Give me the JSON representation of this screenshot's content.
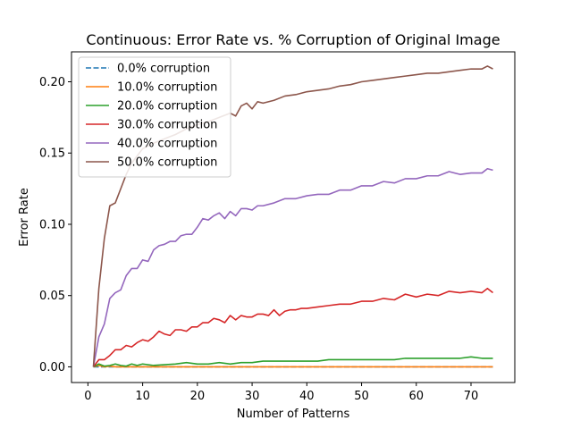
{
  "chart_data": {
    "type": "line",
    "title": "Continuous: Error Rate vs. % Corruption of Original Image",
    "xlabel": "Number of Patterns",
    "ylabel": "Error Rate",
    "xlim": [
      -3,
      78
    ],
    "ylim": [
      -0.011,
      0.221
    ],
    "xticks": [
      0,
      10,
      20,
      30,
      40,
      50,
      60,
      70
    ],
    "yticks": [
      0.0,
      0.05,
      0.1,
      0.15,
      0.2
    ],
    "ytick_labels": [
      "0.00",
      "0.05",
      "0.10",
      "0.15",
      "0.20"
    ],
    "grid": false,
    "legend_position": "top-left",
    "series": [
      {
        "name": "0.0% corruption",
        "color": "#1f77b4",
        "dash": "dashed",
        "x": [
          1,
          74
        ],
        "y": [
          0.0,
          0.0
        ]
      },
      {
        "name": "10.0% corruption",
        "color": "#ff7f0e",
        "dash": "solid",
        "x": [
          1,
          2,
          3,
          4,
          5,
          10,
          20,
          30,
          40,
          50,
          60,
          70,
          74
        ],
        "y": [
          0.0,
          0.001,
          0.0,
          0.0005,
          0.0,
          0.0,
          0.0,
          0.0,
          0.0,
          0.0,
          0.0,
          0.0,
          0.0
        ]
      },
      {
        "name": "20.0% corruption",
        "color": "#2ca02c",
        "dash": "solid",
        "x": [
          1,
          2,
          3,
          4,
          5,
          6,
          7,
          8,
          9,
          10,
          12,
          14,
          16,
          18,
          20,
          22,
          24,
          26,
          28,
          30,
          32,
          34,
          36,
          38,
          40,
          42,
          44,
          46,
          48,
          50,
          52,
          54,
          56,
          58,
          60,
          62,
          64,
          66,
          68,
          70,
          72,
          74
        ],
        "y": [
          0.0,
          0.002,
          0.0005,
          0.001,
          0.002,
          0.001,
          0.0005,
          0.002,
          0.001,
          0.002,
          0.001,
          0.0015,
          0.002,
          0.003,
          0.002,
          0.002,
          0.003,
          0.002,
          0.003,
          0.003,
          0.004,
          0.004,
          0.004,
          0.004,
          0.004,
          0.004,
          0.005,
          0.005,
          0.005,
          0.005,
          0.005,
          0.005,
          0.005,
          0.006,
          0.006,
          0.006,
          0.006,
          0.006,
          0.006,
          0.007,
          0.006,
          0.006
        ]
      },
      {
        "name": "30.0% corruption",
        "color": "#d62728",
        "dash": "solid",
        "x": [
          1,
          2,
          3,
          4,
          5,
          6,
          7,
          8,
          9,
          10,
          11,
          12,
          13,
          14,
          15,
          16,
          17,
          18,
          19,
          20,
          21,
          22,
          23,
          24,
          25,
          26,
          27,
          28,
          29,
          30,
          31,
          32,
          33,
          34,
          35,
          36,
          37,
          38,
          39,
          40,
          42,
          44,
          46,
          48,
          50,
          52,
          54,
          56,
          58,
          60,
          62,
          64,
          66,
          68,
          70,
          72,
          73,
          74
        ],
        "y": [
          0.0,
          0.005,
          0.005,
          0.008,
          0.012,
          0.012,
          0.015,
          0.014,
          0.017,
          0.019,
          0.018,
          0.021,
          0.025,
          0.023,
          0.022,
          0.026,
          0.026,
          0.025,
          0.028,
          0.028,
          0.031,
          0.031,
          0.034,
          0.033,
          0.031,
          0.036,
          0.033,
          0.036,
          0.035,
          0.035,
          0.037,
          0.037,
          0.036,
          0.04,
          0.036,
          0.039,
          0.04,
          0.04,
          0.041,
          0.041,
          0.042,
          0.043,
          0.044,
          0.044,
          0.046,
          0.046,
          0.048,
          0.047,
          0.051,
          0.049,
          0.051,
          0.05,
          0.053,
          0.052,
          0.053,
          0.052,
          0.055,
          0.052
        ]
      },
      {
        "name": "40.0% corruption",
        "color": "#9467bd",
        "dash": "solid",
        "x": [
          1,
          2,
          3,
          4,
          5,
          6,
          7,
          8,
          9,
          10,
          11,
          12,
          13,
          14,
          15,
          16,
          17,
          18,
          19,
          20,
          21,
          22,
          23,
          24,
          25,
          26,
          27,
          28,
          29,
          30,
          31,
          32,
          34,
          36,
          38,
          40,
          42,
          44,
          46,
          48,
          50,
          52,
          54,
          56,
          58,
          60,
          62,
          64,
          66,
          68,
          70,
          72,
          73,
          74
        ],
        "y": [
          0.0,
          0.021,
          0.03,
          0.048,
          0.052,
          0.054,
          0.064,
          0.069,
          0.069,
          0.075,
          0.074,
          0.082,
          0.085,
          0.086,
          0.088,
          0.088,
          0.092,
          0.093,
          0.093,
          0.098,
          0.104,
          0.103,
          0.106,
          0.108,
          0.104,
          0.109,
          0.106,
          0.111,
          0.111,
          0.11,
          0.113,
          0.113,
          0.115,
          0.118,
          0.118,
          0.12,
          0.121,
          0.121,
          0.124,
          0.124,
          0.127,
          0.127,
          0.13,
          0.129,
          0.132,
          0.132,
          0.134,
          0.134,
          0.137,
          0.135,
          0.136,
          0.136,
          0.139,
          0.138
        ]
      },
      {
        "name": "50.0% corruption",
        "color": "#8c564b",
        "dash": "solid",
        "x": [
          1,
          2,
          3,
          4,
          5,
          6,
          7,
          8,
          9,
          10,
          12,
          14,
          16,
          18,
          20,
          22,
          24,
          26,
          27,
          28,
          29,
          30,
          31,
          32,
          34,
          36,
          38,
          40,
          42,
          44,
          46,
          48,
          50,
          52,
          54,
          56,
          58,
          60,
          62,
          64,
          66,
          68,
          70,
          72,
          73,
          74
        ],
        "y": [
          0.0,
          0.055,
          0.09,
          0.113,
          0.115,
          0.125,
          0.135,
          0.143,
          0.148,
          0.153,
          0.157,
          0.16,
          0.163,
          0.167,
          0.17,
          0.172,
          0.175,
          0.178,
          0.176,
          0.183,
          0.185,
          0.181,
          0.186,
          0.185,
          0.187,
          0.19,
          0.191,
          0.193,
          0.194,
          0.195,
          0.197,
          0.198,
          0.2,
          0.201,
          0.202,
          0.203,
          0.204,
          0.205,
          0.206,
          0.206,
          0.207,
          0.208,
          0.209,
          0.209,
          0.211,
          0.209
        ]
      }
    ]
  }
}
